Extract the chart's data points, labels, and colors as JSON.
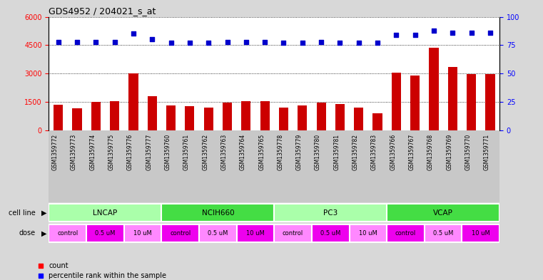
{
  "title": "GDS4952 / 204021_s_at",
  "samples": [
    "GSM1359772",
    "GSM1359773",
    "GSM1359774",
    "GSM1359775",
    "GSM1359776",
    "GSM1359777",
    "GSM1359760",
    "GSM1359761",
    "GSM1359762",
    "GSM1359763",
    "GSM1359764",
    "GSM1359765",
    "GSM1359778",
    "GSM1359779",
    "GSM1359780",
    "GSM1359781",
    "GSM1359782",
    "GSM1359783",
    "GSM1359766",
    "GSM1359767",
    "GSM1359768",
    "GSM1359769",
    "GSM1359770",
    "GSM1359771"
  ],
  "counts": [
    1350,
    1150,
    1480,
    1520,
    3000,
    1800,
    1320,
    1280,
    1200,
    1470,
    1540,
    1530,
    1200,
    1300,
    1450,
    1400,
    1180,
    900,
    3050,
    2900,
    4350,
    3350,
    2950,
    2950
  ],
  "percentile_ranks": [
    78,
    78,
    78,
    78,
    85,
    80,
    77,
    77,
    77,
    78,
    78,
    78,
    77,
    77,
    78,
    77,
    77,
    77,
    84,
    84,
    88,
    86,
    86,
    86
  ],
  "cell_lines": [
    {
      "name": "LNCAP",
      "start": 0,
      "end": 6,
      "color": "#aaffaa"
    },
    {
      "name": "NCIH660",
      "start": 6,
      "end": 12,
      "color": "#44dd44"
    },
    {
      "name": "PC3",
      "start": 12,
      "end": 18,
      "color": "#aaffaa"
    },
    {
      "name": "VCAP",
      "start": 18,
      "end": 24,
      "color": "#44dd44"
    }
  ],
  "doses": [
    {
      "name": "control",
      "start": 0,
      "end": 2,
      "color": "#ff88ff"
    },
    {
      "name": "0.5 uM",
      "start": 2,
      "end": 4,
      "color": "#ee00ee"
    },
    {
      "name": "10 uM",
      "start": 4,
      "end": 6,
      "color": "#ff88ff"
    },
    {
      "name": "control",
      "start": 6,
      "end": 8,
      "color": "#ee00ee"
    },
    {
      "name": "0.5 uM",
      "start": 8,
      "end": 10,
      "color": "#ff88ff"
    },
    {
      "name": "10 uM",
      "start": 10,
      "end": 12,
      "color": "#ee00ee"
    },
    {
      "name": "control",
      "start": 12,
      "end": 14,
      "color": "#ff88ff"
    },
    {
      "name": "0.5 uM",
      "start": 14,
      "end": 16,
      "color": "#ee00ee"
    },
    {
      "name": "10 uM",
      "start": 16,
      "end": 18,
      "color": "#ff88ff"
    },
    {
      "name": "control",
      "start": 18,
      "end": 20,
      "color": "#ee00ee"
    },
    {
      "name": "0.5 uM",
      "start": 20,
      "end": 22,
      "color": "#ff88ff"
    },
    {
      "name": "10 uM",
      "start": 22,
      "end": 24,
      "color": "#ee00ee"
    }
  ],
  "bar_color": "#CC0000",
  "dot_color": "#0000CC",
  "left_ylim": [
    0,
    6000
  ],
  "left_yticks": [
    0,
    1500,
    3000,
    4500,
    6000
  ],
  "right_ylim": [
    0,
    100
  ],
  "right_yticks": [
    0,
    25,
    50,
    75,
    100
  ],
  "bg_color": "#D8D8D8",
  "plot_bg_color": "#FFFFFF",
  "grid_color": "#000000",
  "label_bg_color": "#C8C8C8"
}
